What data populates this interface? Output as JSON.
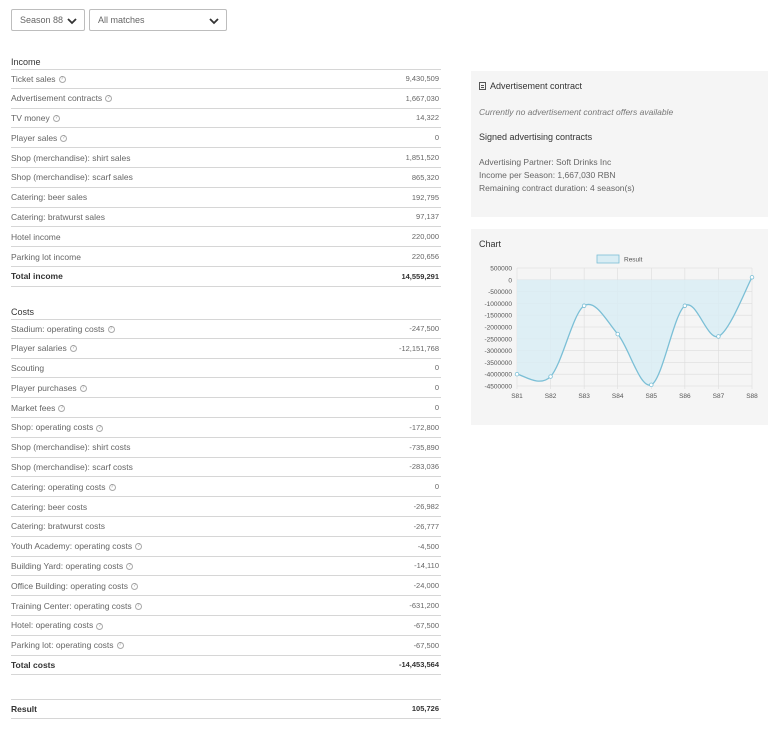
{
  "filters": {
    "season": "Season 88",
    "matches": "All matches"
  },
  "income": {
    "title": "Income",
    "rows": [
      {
        "label": "Ticket sales",
        "value": "9,430,509",
        "help": true
      },
      {
        "label": "Advertisement contracts",
        "value": "1,667,030",
        "help": true
      },
      {
        "label": "TV money",
        "value": "14,322",
        "help": true
      },
      {
        "label": "Player sales",
        "value": "0",
        "help": true
      },
      {
        "label": "Shop (merchandise): shirt sales",
        "value": "1,851,520",
        "help": false
      },
      {
        "label": "Shop (merchandise): scarf sales",
        "value": "865,320",
        "help": false
      },
      {
        "label": "Catering: beer sales",
        "value": "192,795",
        "help": false
      },
      {
        "label": "Catering: bratwurst sales",
        "value": "97,137",
        "help": false
      },
      {
        "label": "Hotel income",
        "value": "220,000",
        "help": false
      },
      {
        "label": "Parking lot income",
        "value": "220,656",
        "help": false
      }
    ],
    "total_label": "Total income",
    "total_value": "14,559,291"
  },
  "costs": {
    "title": "Costs",
    "rows": [
      {
        "label": "Stadium: operating costs",
        "value": "-247,500",
        "help": true
      },
      {
        "label": "Player salaries",
        "value": "-12,151,768",
        "help": true
      },
      {
        "label": "Scouting",
        "value": "0",
        "help": false
      },
      {
        "label": "Player purchases",
        "value": "0",
        "help": true
      },
      {
        "label": "Market fees",
        "value": "0",
        "help": true
      },
      {
        "label": "Shop: operating costs",
        "value": "-172,800",
        "help": true
      },
      {
        "label": "Shop (merchandise): shirt costs",
        "value": "-735,890",
        "help": false
      },
      {
        "label": "Shop (merchandise): scarf costs",
        "value": "-283,036",
        "help": false
      },
      {
        "label": "Catering: operating costs",
        "value": "0",
        "help": true
      },
      {
        "label": "Catering: beer costs",
        "value": "-26,982",
        "help": false
      },
      {
        "label": "Catering: bratwurst costs",
        "value": "-26,777",
        "help": false
      },
      {
        "label": "Youth Academy: operating costs",
        "value": "-4,500",
        "help": true
      },
      {
        "label": "Building Yard: operating costs",
        "value": "-14,110",
        "help": true
      },
      {
        "label": "Office Building: operating costs",
        "value": "-24,000",
        "help": true
      },
      {
        "label": "Training Center: operating costs",
        "value": "-631,200",
        "help": true
      },
      {
        "label": "Hotel: operating costs",
        "value": "-67,500",
        "help": true
      },
      {
        "label": "Parking lot: operating costs",
        "value": "-67,500",
        "help": true
      }
    ],
    "total_label": "Total costs",
    "total_value": "-14,453,564"
  },
  "result": {
    "label": "Result",
    "value": "105,726"
  },
  "ad_contract": {
    "title": "Advertisement contract",
    "no_offers": "Currently no advertisement contract offers available",
    "signed_title": "Signed advertising contracts",
    "partner": "Advertising Partner: Soft Drinks Inc",
    "income": "Income per Season: 1,667,030 RBN",
    "duration": "Remaining contract duration: 4 season(s)"
  },
  "chart": {
    "title": "Chart"
  },
  "chart_data": {
    "type": "area",
    "categories": [
      "S81",
      "S82",
      "S83",
      "S84",
      "S85",
      "S86",
      "S87",
      "S88"
    ],
    "series": [
      {
        "name": "Result",
        "values": [
          -4000000,
          -4100000,
          -1100000,
          -2300000,
          -4450000,
          -1100000,
          -2400000,
          105726
        ]
      }
    ],
    "yticks": [
      "500000",
      "0",
      "-500000",
      "-1000000",
      "-1500000",
      "-2000000",
      "-2500000",
      "-3000000",
      "-3500000",
      "-4000000",
      "-4500000"
    ],
    "ylim": [
      -4500000,
      500000
    ],
    "legend": "top-center",
    "grid": true,
    "colors": {
      "line": "#7bbfd6",
      "fill": "#d9edf4"
    }
  }
}
